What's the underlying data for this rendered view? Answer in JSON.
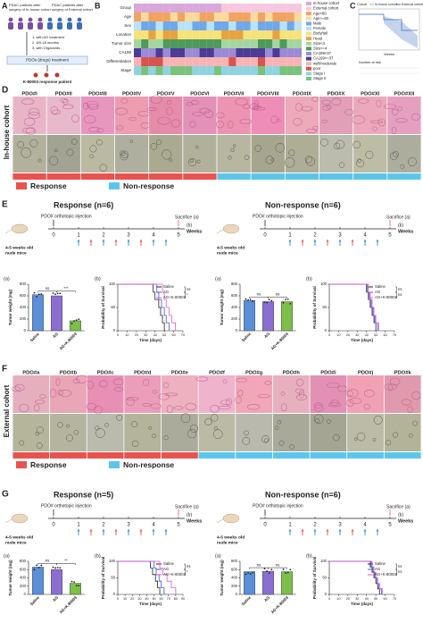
{
  "panel_a": {
    "letter": "A",
    "cohort1": [
      "PDAC patients after",
      "surgery of In-house cohort"
    ],
    "cohort2": [
      "PDAC patients after",
      "surgery of External cohort"
    ],
    "steps": [
      "1. with AG treatment",
      "2. 6/9-18 months",
      "3. with Organoids"
    ],
    "pdo": "PDOs (drugs) treatment",
    "result": "K-80003 response patient"
  },
  "panel_b": {
    "letter": "B",
    "rows": [
      "Group",
      "Age",
      "Sex",
      "Location",
      "Tumor size",
      "CA199",
      "Differentiation",
      "Stage"
    ],
    "legend": [
      {
        "label": "In-house cohort",
        "color": "#d9a7d9"
      },
      {
        "label": "External cohort",
        "color": "#f6c7de"
      },
      {
        "label": "Age<60",
        "color": "#f2a35e"
      },
      {
        "label": "Age>=60",
        "color": "#ffd99b"
      },
      {
        "label": "Male",
        "color": "#6fa8ea"
      },
      {
        "label": "Female",
        "color": "#b8e3fb"
      },
      {
        "label": "Body/tail",
        "color": "#f7e27a"
      },
      {
        "label": "Head",
        "color": "#e8a33c"
      },
      {
        "label": "Size<4",
        "color": "#a6d6a0"
      },
      {
        "label": "Size>=4",
        "color": "#4f9a5a"
      },
      {
        "label": "CA199<37",
        "color": "#9c8ad8"
      },
      {
        "label": "CA199>=37",
        "color": "#4c3b97"
      },
      {
        "label": "well/moderate",
        "color": "#f8b4b4"
      },
      {
        "label": "poor",
        "color": "#d9534f"
      },
      {
        "label": "Stage I",
        "color": "#8fd3e0"
      },
      {
        "label": "Stage II",
        "color": "#79c27b"
      }
    ]
  },
  "panel_c": {
    "letter": "C",
    "legend_title": "Cohort",
    "legend": [
      "In-house cohort",
      "External cohort"
    ],
    "xlabel": "Weeks",
    "risk": "Number at risk"
  },
  "panel_d": {
    "letter": "D",
    "cohort": "In-house cohort",
    "response": "Response",
    "nonresponse": "Non-response",
    "pdos": [
      {
        "name": "PDO#I",
        "response": true
      },
      {
        "name": "PDO#II",
        "response": true
      },
      {
        "name": "PDO#III",
        "response": true
      },
      {
        "name": "PDO#IV",
        "response": true
      },
      {
        "name": "PDO#V",
        "response": true
      },
      {
        "name": "PDO#VI",
        "response": true
      },
      {
        "name": "PDO#VII",
        "response": false
      },
      {
        "name": "PDO#VIII",
        "response": false
      },
      {
        "name": "PDO#IX",
        "response": false
      },
      {
        "name": "PDO#X",
        "response": false
      },
      {
        "name": "PDO#XI",
        "response": false
      },
      {
        "name": "PDO#XII",
        "response": false
      }
    ]
  },
  "panel_e": {
    "letter": "E",
    "groups": [
      {
        "title": "Response (n=6)",
        "injection": "PDO# orthotopic injection",
        "sacrifice": "Sacrifice (a)",
        "end": "(b)",
        "weeks_label": "Weeks",
        "mice": [
          "4-5 weeks old",
          "nude  mice"
        ],
        "weeks": [
          0,
          1,
          2,
          3,
          4,
          5
        ],
        "bar": {
          "type": "bar",
          "label": "(a)",
          "ylabel": "Tumor weight (mg)",
          "categories": [
            "Saline",
            "AG",
            "AG+K-80003"
          ],
          "values": [
            620,
            600,
            170
          ],
          "colors": [
            "#5b8fd8",
            "#8a6fd1",
            "#7cbf4a"
          ],
          "ylim": [
            0,
            800
          ],
          "yticks": [
            0,
            200,
            400,
            600,
            800
          ],
          "sig": [
            "ns",
            "***"
          ]
        },
        "surv": {
          "type": "line",
          "label": "(b)",
          "ylabel": "Probability of Survival",
          "xlabel": "Time (days)",
          "xlim": [
            0,
            70
          ],
          "xticks": [
            0,
            10,
            20,
            30,
            40,
            50,
            60,
            70
          ],
          "ylim": [
            0,
            100
          ],
          "yticks": [
            0,
            50,
            100
          ],
          "sig": [
            "ns",
            "*"
          ],
          "series": [
            {
              "name": "Saline",
              "color": "#222222",
              "x": [
                0,
                38,
                40,
                44,
                46,
                48,
                50
              ],
              "values": [
                100,
                83,
                67,
                50,
                33,
                17,
                0
              ]
            },
            {
              "name": "AG",
              "color": "#3b5bdb",
              "x": [
                0,
                42,
                44,
                47,
                50,
                52,
                55
              ],
              "values": [
                100,
                83,
                67,
                50,
                33,
                17,
                0
              ]
            },
            {
              "name": "AG+K-80003",
              "color": "#e056d6",
              "x": [
                0,
                48,
                50,
                52,
                55,
                58,
                62
              ],
              "values": [
                100,
                83,
                67,
                50,
                33,
                17,
                0
              ]
            }
          ]
        }
      },
      {
        "title": "Non-response (n=6)",
        "injection": "PDO# orthotopic injection",
        "sacrifice": "Sacrifice (a)",
        "end": "(b)",
        "weeks_label": "Weeks",
        "mice": [
          "4-5 weeks old",
          "nude  mice"
        ],
        "weeks": [
          0,
          1,
          2,
          3,
          4,
          5
        ],
        "bar": {
          "type": "bar",
          "label": "(a)",
          "ylabel": "Tumor weight (mg)",
          "categories": [
            "Saline",
            "AG",
            "AG+K-80003"
          ],
          "values": [
            520,
            500,
            500
          ],
          "colors": [
            "#5b8fd8",
            "#8a6fd1",
            "#7cbf4a"
          ],
          "ylim": [
            0,
            800
          ],
          "yticks": [
            0,
            200,
            400,
            600,
            800
          ],
          "sig": [
            "ns",
            "ns"
          ]
        },
        "surv": {
          "type": "line",
          "label": "(b)",
          "ylabel": "Probability of Survival",
          "xlabel": "Time (days)",
          "xlim": [
            0,
            70
          ],
          "xticks": [
            0,
            10,
            20,
            30,
            40,
            50,
            60,
            70
          ],
          "ylim": [
            0,
            100
          ],
          "yticks": [
            0,
            50,
            100
          ],
          "sig": [
            "ns",
            "ns"
          ],
          "series": [
            {
              "name": "Saline",
              "color": "#222222",
              "x": [
                0,
                40,
                42,
                44,
                46,
                48,
                50
              ],
              "values": [
                100,
                83,
                67,
                50,
                33,
                17,
                0
              ]
            },
            {
              "name": "AG",
              "color": "#3b5bdb",
              "x": [
                0,
                41,
                43,
                45,
                47,
                49,
                52
              ],
              "values": [
                100,
                83,
                67,
                50,
                33,
                17,
                0
              ]
            },
            {
              "name": "AG+K-80003",
              "color": "#e056d6",
              "x": [
                0,
                42,
                44,
                46,
                48,
                50,
                53
              ],
              "values": [
                100,
                83,
                67,
                50,
                33,
                17,
                0
              ]
            }
          ]
        }
      }
    ]
  },
  "panel_f": {
    "letter": "F",
    "cohort": "External cohort",
    "response": "Response",
    "nonresponse": "Non-response",
    "pdos": [
      {
        "name": "PDO#a",
        "response": true
      },
      {
        "name": "PDO#b",
        "response": true
      },
      {
        "name": "PDO#c",
        "response": true
      },
      {
        "name": "PDO#d",
        "response": true
      },
      {
        "name": "PDO#e",
        "response": true
      },
      {
        "name": "PDO#f",
        "response": false
      },
      {
        "name": "PDO#g",
        "response": false
      },
      {
        "name": "PDO#h",
        "response": false
      },
      {
        "name": "PDO#i",
        "response": false
      },
      {
        "name": "PDO#j",
        "response": false
      },
      {
        "name": "PDO#k",
        "response": false
      }
    ]
  },
  "panel_g": {
    "letter": "G",
    "groups": [
      {
        "title": "Response (n=5)",
        "injection": "PDO# orthotopic injection",
        "sacrifice": "Sacrifice (a)",
        "end": "(b)",
        "weeks_label": "Weeks",
        "mice": [
          "4-5 weeks old",
          "nude  mice"
        ],
        "weeks": [
          0,
          1,
          2,
          3,
          4,
          5
        ],
        "bar": {
          "type": "bar",
          "label": "(a)",
          "ylabel": "Tumor weight (mg)",
          "categories": [
            "Saline",
            "AG",
            "AG+K-80003"
          ],
          "values": [
            660,
            600,
            270
          ],
          "colors": [
            "#5b8fd8",
            "#8a6fd1",
            "#7cbf4a"
          ],
          "ylim": [
            0,
            800
          ],
          "yticks": [
            0,
            200,
            400,
            600,
            800
          ],
          "sig": [
            "ns",
            "**"
          ]
        },
        "surv": {
          "type": "line",
          "label": "(b)",
          "ylabel": "Probability of Survival",
          "xlabel": "Time (days)",
          "xlim": [
            0,
            90
          ],
          "xticks": [
            0,
            10,
            20,
            30,
            40,
            50,
            60,
            70,
            80,
            90
          ],
          "ylim": [
            0,
            100
          ],
          "yticks": [
            0,
            50,
            100
          ],
          "sig": [
            "ns",
            "*"
          ],
          "series": [
            {
              "name": "Saline",
              "color": "#222222",
              "x": [
                0,
                45,
                48,
                52,
                55,
                58
              ],
              "values": [
                100,
                80,
                60,
                40,
                20,
                0
              ]
            },
            {
              "name": "AG",
              "color": "#3b5bdb",
              "x": [
                0,
                50,
                53,
                57,
                60,
                64
              ],
              "values": [
                100,
                80,
                60,
                40,
                20,
                0
              ]
            },
            {
              "name": "AG+K-80003",
              "color": "#e056d6",
              "x": [
                0,
                58,
                62,
                68,
                74,
                80
              ],
              "values": [
                100,
                80,
                60,
                40,
                20,
                0
              ]
            }
          ]
        }
      },
      {
        "title": "Non-response (n=6)",
        "injection": "PDO# orthotopic injection",
        "sacrifice": "Sacrifice (a)",
        "end": "(b)",
        "weeks_label": "Weeks",
        "mice": [
          "4-5 weeks old",
          "nude  mice"
        ],
        "weeks": [
          0,
          1,
          2,
          3,
          4,
          5
        ],
        "bar": {
          "type": "bar",
          "label": "(a)",
          "ylabel": "Tumor weight (mg)",
          "categories": [
            "Saline",
            "AG",
            "AG+K-80003"
          ],
          "values": [
            550,
            560,
            550
          ],
          "colors": [
            "#5b8fd8",
            "#8a6fd1",
            "#7cbf4a"
          ],
          "ylim": [
            0,
            800
          ],
          "yticks": [
            0,
            200,
            400,
            600,
            800
          ],
          "sig": [
            "ns",
            "ns"
          ]
        },
        "surv": {
          "type": "line",
          "label": "(b)",
          "ylabel": "Probability of Survival",
          "xlabel": "Time (days)",
          "xlim": [
            0,
            70
          ],
          "xticks": [
            0,
            10,
            20,
            30,
            40,
            50,
            60,
            70
          ],
          "ylim": [
            0,
            100
          ],
          "yticks": [
            0,
            50,
            100
          ],
          "sig": [
            "ns",
            "ns"
          ],
          "series": [
            {
              "name": "Saline",
              "color": "#222222",
              "x": [
                0,
                44,
                46,
                48,
                50,
                52,
                54
              ],
              "values": [
                100,
                83,
                67,
                50,
                33,
                17,
                0
              ]
            },
            {
              "name": "AG",
              "color": "#3b5bdb",
              "x": [
                0,
                45,
                47,
                49,
                51,
                53,
                56
              ],
              "values": [
                100,
                83,
                67,
                50,
                33,
                17,
                0
              ]
            },
            {
              "name": "AG+K-80003",
              "color": "#e056d6",
              "x": [
                0,
                46,
                48,
                50,
                52,
                54,
                57
              ],
              "values": [
                100,
                83,
                67,
                50,
                33,
                17,
                0
              ]
            }
          ]
        }
      }
    ]
  }
}
